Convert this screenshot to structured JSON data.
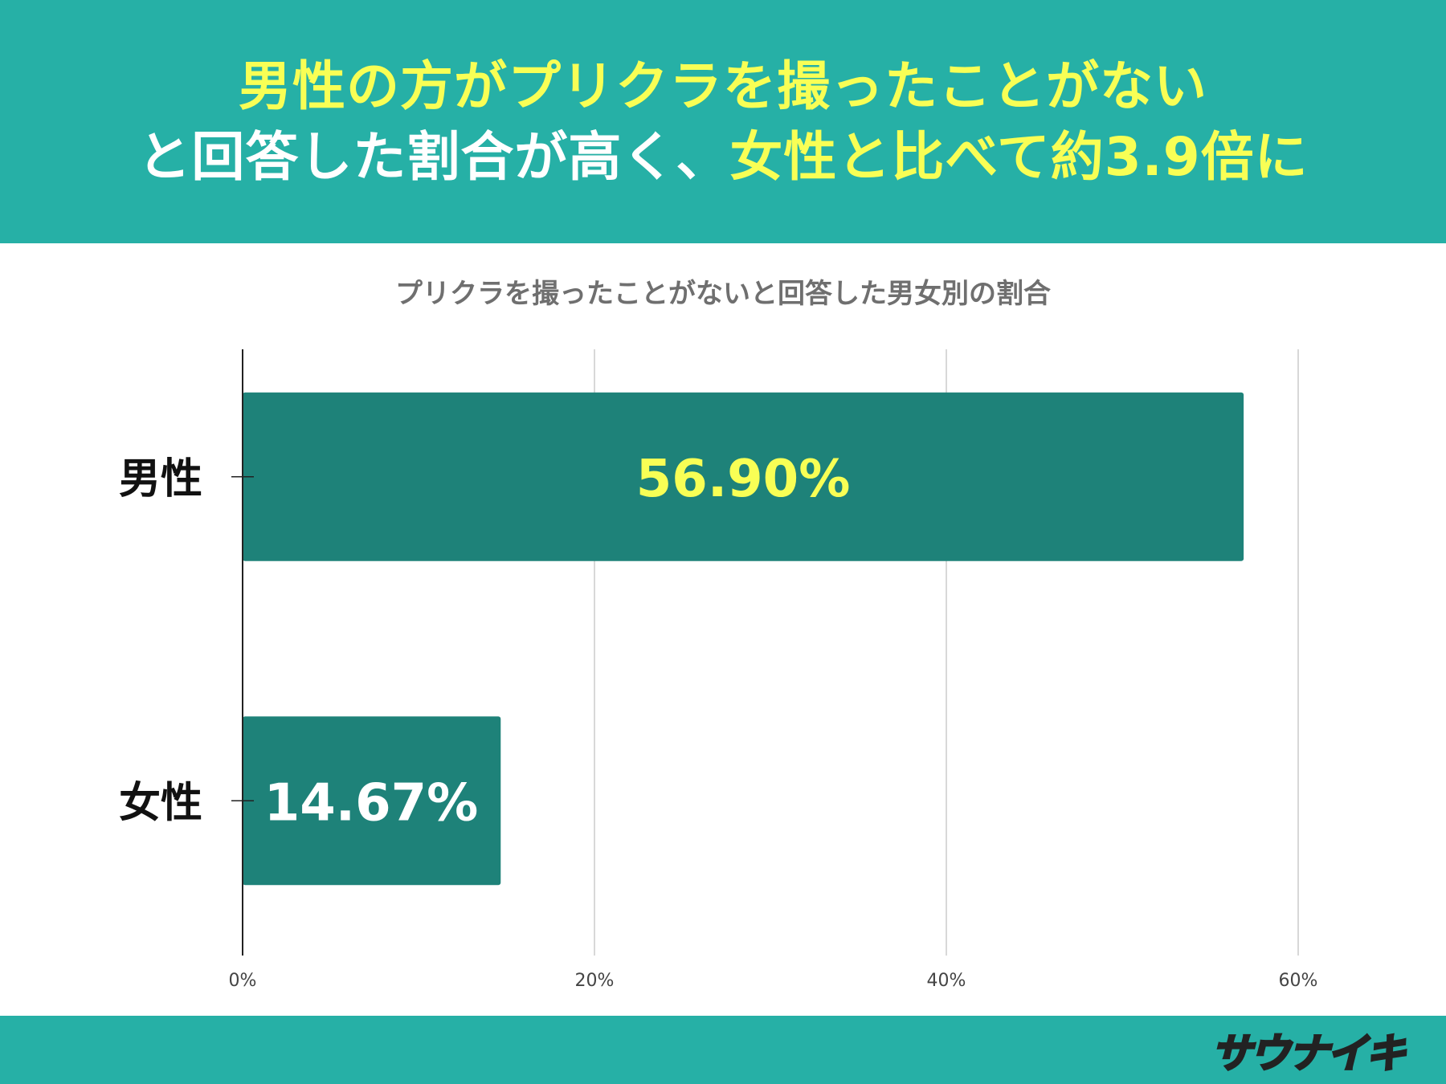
{
  "header": {
    "line1": [
      {
        "text": "男性の方がプリクラを撮ったことがない",
        "color": "#f8ff55"
      }
    ],
    "line2": [
      {
        "text": "と回答した割合が高く、",
        "color": "#ffffff"
      },
      {
        "text": "女性と比べて約3.9倍に",
        "color": "#f8ff55"
      }
    ]
  },
  "colors": {
    "header_bg": "#26b0a6",
    "bar": "#1e8279",
    "highlight_label": "#f8ff55",
    "normal_label": "#ffffff",
    "title": "#6f6f6f"
  },
  "chart_data": {
    "type": "bar",
    "orientation": "horizontal",
    "title": "プリクラを撮ったことがないと回答した男女別の割合",
    "categories": [
      "男性",
      "女性"
    ],
    "values": [
      56.9,
      14.67
    ],
    "data_labels": [
      "56.90%",
      "14.67%"
    ],
    "label_colors": [
      "#f8ff55",
      "#ffffff"
    ],
    "xlim": [
      0,
      60
    ],
    "xticks": [
      0,
      20,
      40,
      60
    ],
    "xtick_labels": [
      "0%",
      "20%",
      "40%",
      "60%"
    ],
    "grid": true,
    "legend": "none"
  },
  "footer": {
    "logo_text": "サウナイキ"
  }
}
